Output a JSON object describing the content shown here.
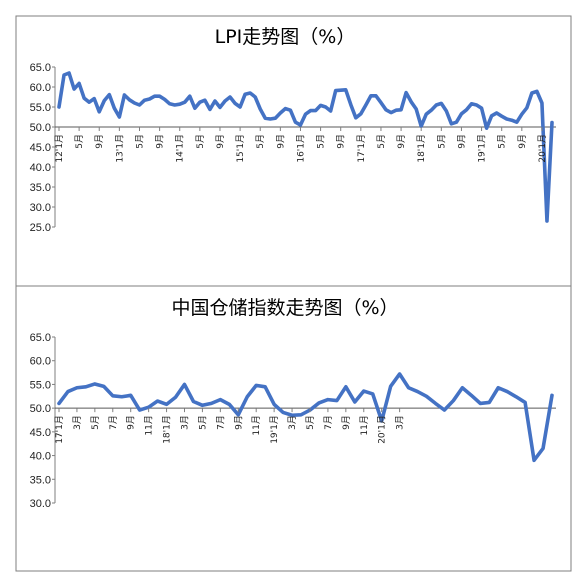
{
  "chart_data": [
    {
      "type": "line",
      "title": "LPI走势图（%）",
      "ylim": [
        25,
        65
      ],
      "yticks": [
        "65.0",
        "60.0",
        "55.0",
        "50.0",
        "45.0",
        "40.0",
        "35.0",
        "30.0",
        "25.0"
      ],
      "baseline": 50,
      "x_tick_labels": [
        "12'1月",
        "5月",
        "9月",
        "13'1月",
        "5月",
        "9月",
        "14'1月",
        "5月",
        "9月",
        "15'1月",
        "5月",
        "9月",
        "16'1月",
        "5月",
        "9月",
        "17'1月",
        "5月",
        "9月",
        "18'1月",
        "5月",
        "9月",
        "19'1月",
        "5月",
        "9月",
        "20'1月"
      ],
      "tick_every": 4,
      "color": "#4472c4",
      "series": [
        {
          "values": [
            55.0,
            63.0,
            63.5,
            59.5,
            60.9,
            57.2,
            56.2,
            57.1,
            53.8,
            56.6,
            58.1,
            54.7,
            52.5,
            58.0,
            56.8,
            56.0,
            55.5,
            56.7,
            57.0,
            57.7,
            57.7,
            56.9,
            55.8,
            55.5,
            55.7,
            56.2,
            57.7,
            54.7,
            56.2,
            56.7,
            54.4,
            56.5,
            54.9,
            56.5,
            57.5,
            55.9,
            55.0,
            58.2,
            58.5,
            57.5,
            54.5,
            52.2,
            52.0,
            52.2,
            53.5,
            54.6,
            54.2,
            51.2,
            50.5,
            53.2,
            54.1,
            54.1,
            55.4,
            55.0,
            54.0,
            59.1,
            59.2,
            59.3,
            55.6,
            52.3,
            53.3,
            55.5,
            57.8,
            57.8,
            56.1,
            54.3,
            53.6,
            54.2,
            54.3,
            58.6,
            56.3,
            54.5,
            50.2,
            53.2,
            54.2,
            55.5,
            55.9,
            54.0,
            50.8,
            51.2,
            53.3,
            54.3,
            55.8,
            55.5,
            54.7,
            49.7,
            52.8,
            53.5,
            52.7,
            52.0,
            51.7,
            51.2,
            53.2,
            54.8,
            58.5,
            58.9,
            56.0,
            26.5,
            51.1
          ]
        }
      ]
    },
    {
      "type": "line",
      "title": "中国仓储指数走势图（%）",
      "ylim": [
        30,
        65
      ],
      "yticks": [
        "65.0",
        "60.0",
        "55.0",
        "50.0",
        "45.0",
        "40.0",
        "35.0",
        "30.0"
      ],
      "baseline": 50,
      "x_tick_labels": [
        "17'1月",
        "3月",
        "5月",
        "7月",
        "9月",
        "11月",
        "18'1月",
        "3月",
        "5月",
        "7月",
        "9月",
        "11月",
        "19'1月",
        "3月",
        "5月",
        "7月",
        "9月",
        "11月",
        "20'1月",
        "3月"
      ],
      "tick_every": 2,
      "color": "#4472c4",
      "series": [
        {
          "values": [
            51.0,
            53.5,
            54.3,
            54.5,
            55.1,
            54.6,
            52.6,
            52.4,
            52.7,
            49.6,
            50.2,
            51.5,
            50.8,
            52.3,
            55.0,
            51.4,
            50.6,
            51.0,
            51.8,
            50.8,
            48.6,
            52.4,
            54.8,
            54.5,
            50.8,
            49.1,
            48.5,
            48.6,
            49.6,
            51.1,
            51.8,
            51.6,
            54.5,
            51.3,
            53.6,
            53.0,
            47.3,
            54.6,
            57.2,
            54.3,
            53.5,
            52.5,
            51.0,
            49.6,
            51.6,
            54.3,
            52.7,
            51.0,
            51.2,
            54.3,
            53.5,
            52.4,
            51.2,
            39.0,
            41.5,
            52.7
          ]
        }
      ]
    }
  ]
}
